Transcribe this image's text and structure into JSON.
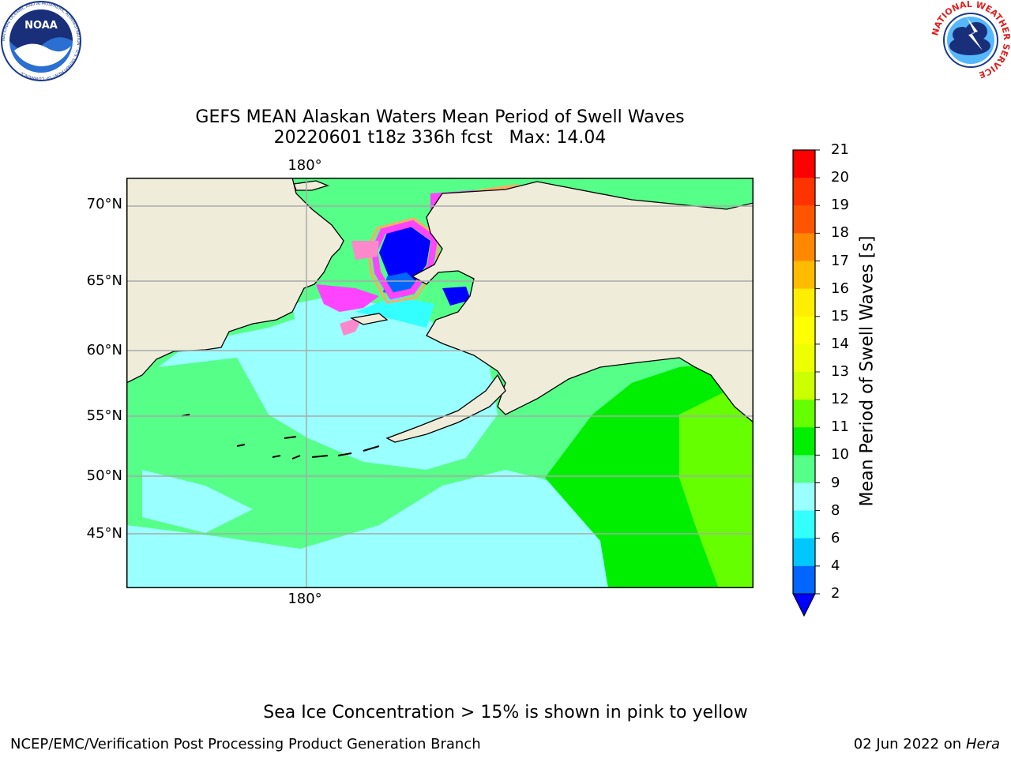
{
  "header": {
    "noaa_logo_text": "NOAA",
    "noaa_ring_text": "NATIONAL OCEANIC AND ATMOSPHERIC ADMINISTRATION · U.S. DEPARTMENT OF COMMERCE",
    "nws_ring_text": "NATIONAL WEATHER SERVICE"
  },
  "chart_data": {
    "type": "heatmap",
    "title": "GEFS MEAN Alaskan Waters Mean Period of Swell Waves",
    "subtitle": "20220601 t18z 336h fcst   Max: 14.04",
    "lat_labels": [
      "70°N",
      "65°N",
      "60°N",
      "55°N",
      "50°N",
      "45°N"
    ],
    "lon_label_top": "180°",
    "lon_label_bottom": "180°",
    "colorbar": {
      "label": "Mean Period of Swell Waves [s]",
      "ticks": [
        "21",
        "20",
        "19",
        "18",
        "17",
        "16",
        "15",
        "14",
        "13",
        "12",
        "11",
        "10",
        "9",
        "8",
        "6",
        "4",
        "2"
      ],
      "levels": [
        2,
        4,
        6,
        8,
        9,
        10,
        11,
        12,
        13,
        14,
        15,
        16,
        17,
        18,
        19,
        20,
        21
      ],
      "colors": [
        "#0066ff",
        "#00c8ff",
        "#33ffff",
        "#99ffff",
        "#55ff88",
        "#00ee00",
        "#66ff00",
        "#ccff00",
        "#eeff00",
        "#ffff00",
        "#ffee00",
        "#ffbb00",
        "#ff8800",
        "#ff5500",
        "#ff3300",
        "#ff0000"
      ],
      "under_color": "#0000ff",
      "extend": "min"
    },
    "regions": {
      "land": "#efedda",
      "ice_colors": [
        "#ff44ff",
        "#ff88cc",
        "#ffaa66",
        "#ffdd33"
      ]
    }
  },
  "annotation": "Sea Ice Concentration > 15% is shown in pink to yellow",
  "footer": {
    "left": "NCEP/EMC/Verification Post Processing Product Generation Branch",
    "date": "02 Jun 2022 on",
    "machine": "Hera"
  }
}
